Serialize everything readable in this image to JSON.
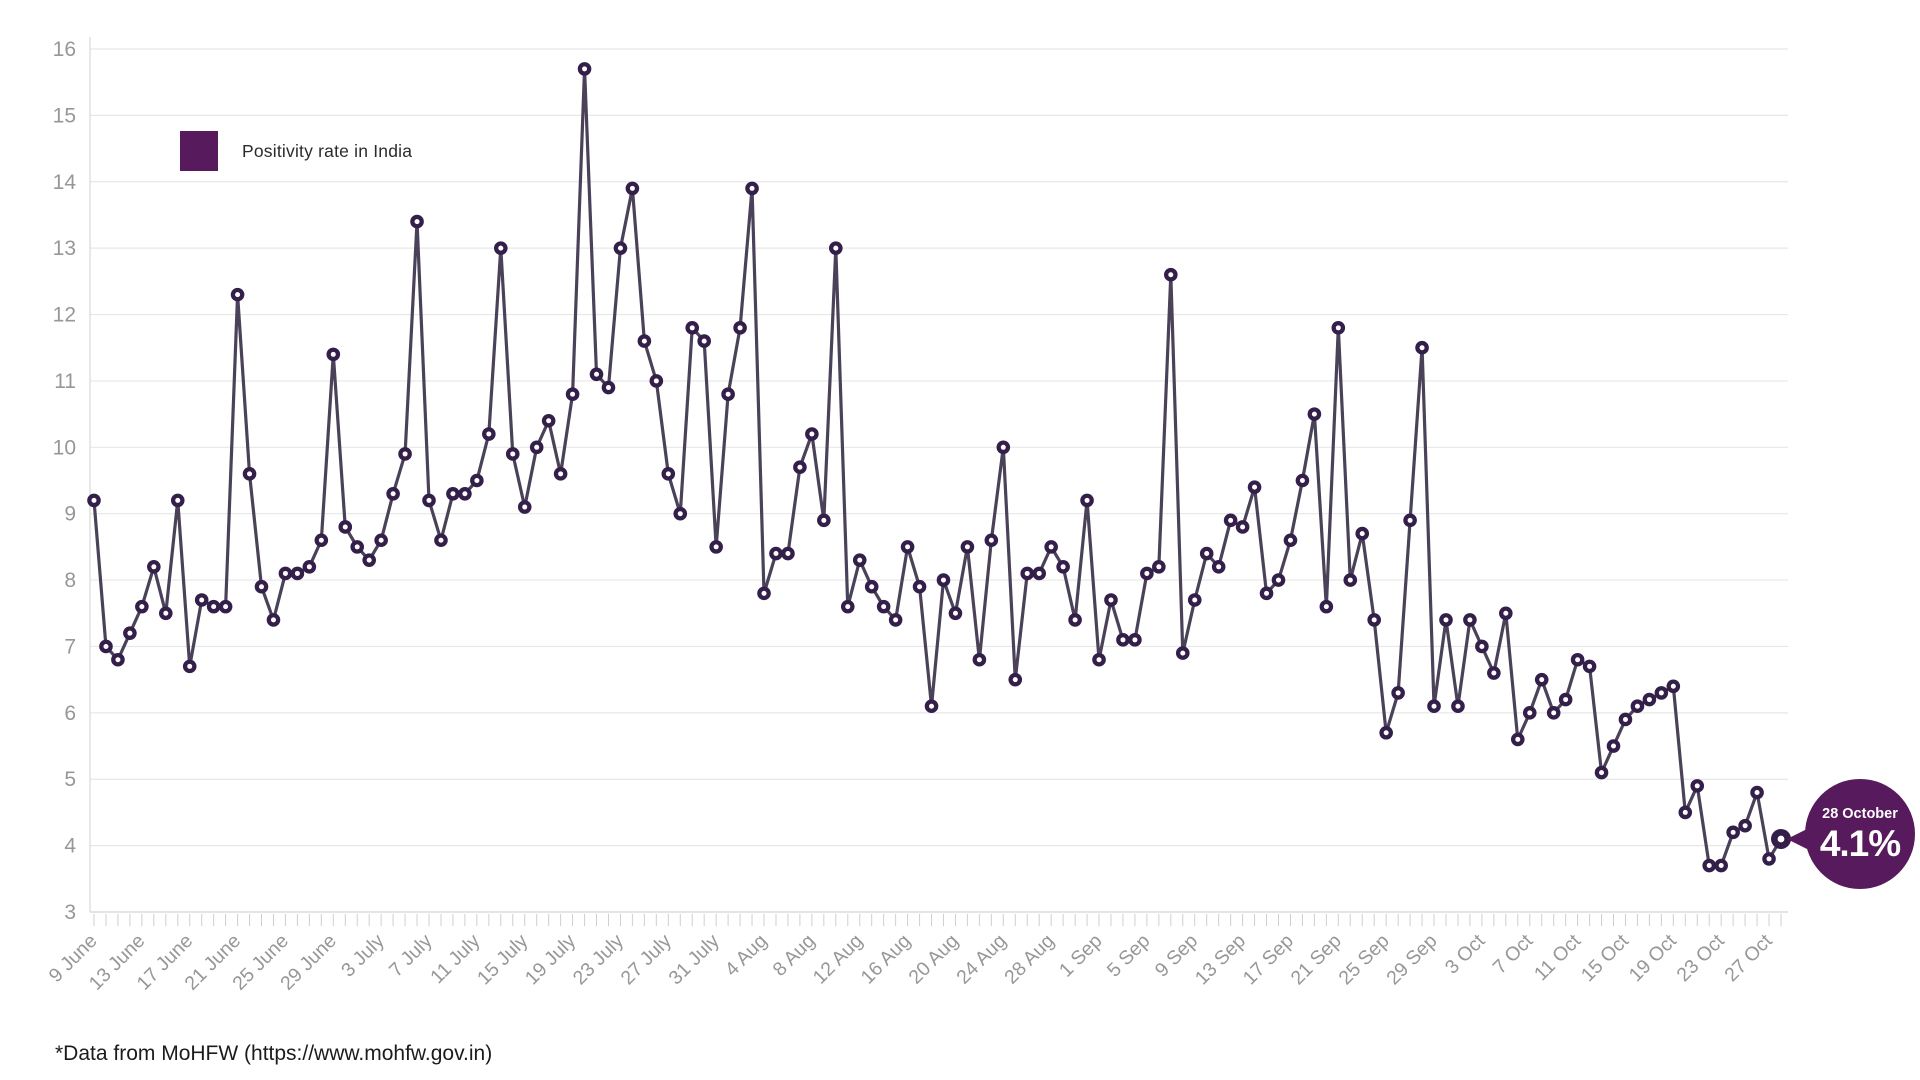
{
  "legend": {
    "label": "Positivity rate in India",
    "swatch_color": "#571a5c"
  },
  "callout": {
    "date": "28 October",
    "value": "4.1%",
    "bubble_color": "#571a5c",
    "text_color": "#ffffff"
  },
  "footer": {
    "note": "*Data from MoHFW (https://www.mohfw.gov.in)"
  },
  "colors": {
    "line": "#4a4258",
    "marker": "#331f49",
    "marker_center": "#ffffff",
    "gridline": "#e7e7e7",
    "axis_line": "#d8d8d8",
    "tick": "#cfcfcf",
    "axis_text": "#979797"
  },
  "chart_data": {
    "type": "line",
    "title": "",
    "series_name": "Positivity rate in India",
    "xlabel": "",
    "ylabel": "",
    "ylim": [
      3,
      16
    ],
    "y_ticks": [
      16,
      15,
      14,
      13,
      12,
      11,
      10,
      9,
      8,
      7,
      6,
      5,
      4,
      3
    ],
    "grid": "horizontal",
    "legend_position": "top-left",
    "tick_label_every_n_points": 4,
    "x_tick_labels": [
      "9 June",
      "13 June",
      "17 June",
      "21 June",
      "25 June",
      "29 June",
      "3 July",
      "7 July",
      "11 July",
      "15 July",
      "19 July",
      "23 July",
      "27 July",
      "31 July",
      "4 Aug",
      "8 Aug",
      "12 Aug",
      "16 Aug",
      "20 Aug",
      "24 Aug",
      "28 Aug",
      "1 Sep",
      "5 Sep",
      "9 Sep",
      "13 Sep",
      "17 Sep",
      "21 Sep",
      "25 Sep",
      "29 Sep",
      "3 Oct",
      "7 Oct",
      "11 Oct",
      "15 Oct",
      "19 Oct",
      "23 Oct",
      "27 Oct"
    ],
    "x_range_note": "daily values from 9 June to 28 October",
    "values": [
      9.2,
      7.0,
      6.8,
      7.2,
      7.6,
      8.2,
      7.5,
      9.2,
      6.7,
      7.7,
      7.6,
      7.6,
      12.3,
      9.6,
      7.9,
      7.4,
      8.1,
      8.1,
      8.2,
      8.6,
      11.4,
      8.8,
      8.5,
      8.3,
      8.6,
      9.3,
      9.9,
      13.4,
      9.2,
      8.6,
      9.3,
      9.3,
      9.5,
      10.2,
      13.0,
      9.9,
      9.1,
      10.0,
      10.4,
      9.6,
      10.8,
      15.7,
      11.1,
      10.9,
      13.0,
      13.9,
      11.6,
      11.0,
      9.6,
      9.0,
      11.8,
      11.6,
      8.5,
      10.8,
      11.8,
      13.9,
      7.8,
      8.4,
      8.4,
      9.7,
      10.2,
      8.9,
      13.0,
      7.6,
      8.3,
      7.9,
      7.6,
      7.4,
      8.5,
      7.9,
      6.1,
      8.0,
      7.5,
      8.5,
      6.8,
      8.6,
      10.0,
      6.5,
      8.1,
      8.1,
      8.5,
      8.2,
      7.4,
      9.2,
      6.8,
      7.7,
      7.1,
      7.1,
      8.1,
      8.2,
      12.6,
      6.9,
      7.7,
      8.4,
      8.2,
      8.9,
      8.8,
      9.4,
      7.8,
      8.0,
      8.6,
      9.5,
      10.5,
      7.6,
      11.8,
      8.0,
      8.7,
      7.4,
      5.7,
      6.3,
      8.9,
      11.5,
      6.1,
      7.4,
      6.1,
      7.4,
      7.0,
      6.6,
      7.5,
      5.6,
      6.0,
      6.5,
      6.0,
      6.2,
      6.8,
      6.7,
      5.1,
      5.5,
      5.9,
      6.1,
      6.2,
      6.3,
      6.4,
      4.5,
      4.9,
      3.7,
      3.7,
      4.2,
      4.3,
      4.8,
      3.8,
      4.1
    ],
    "last_point": {
      "date": "28 October",
      "value": 4.1
    }
  }
}
